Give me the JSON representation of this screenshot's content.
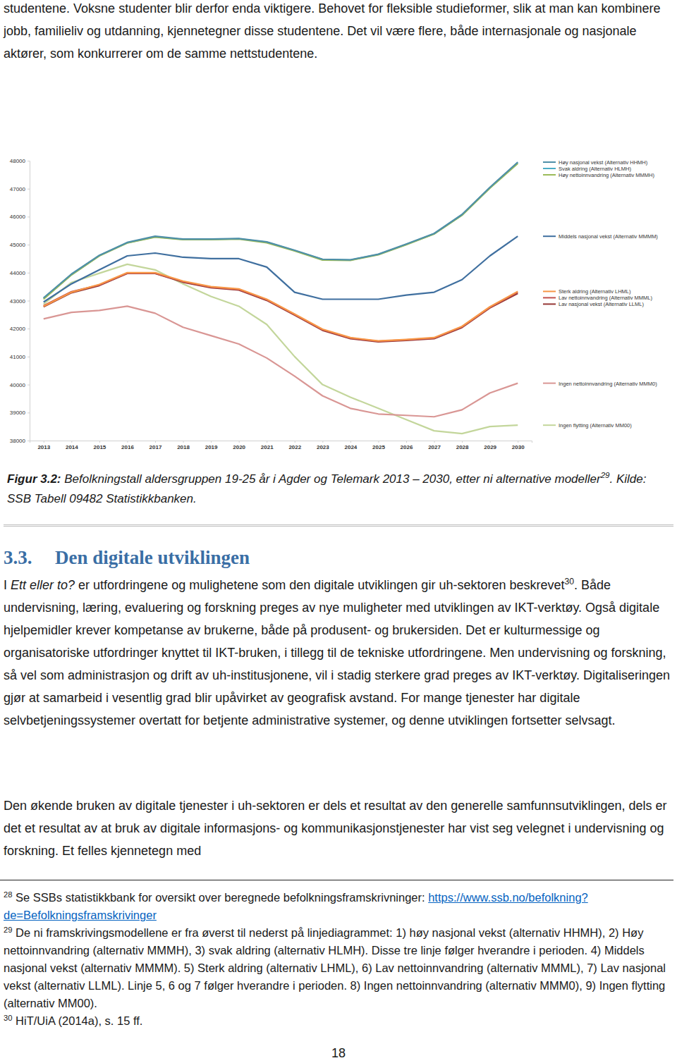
{
  "chart_data": {
    "type": "line",
    "categories": [
      2013,
      2014,
      2015,
      2016,
      2017,
      2018,
      2019,
      2020,
      2021,
      2022,
      2023,
      2024,
      2025,
      2026,
      2027,
      2028,
      2029,
      2030
    ],
    "ylim": [
      38000,
      48000
    ],
    "yticks": [
      38000,
      39000,
      40000,
      41000,
      42000,
      43000,
      44000,
      45000,
      46000,
      47000,
      48000
    ],
    "grid": false,
    "legend": "right",
    "series": [
      {
        "name": "Høy nasjonal vekst (Alternativ HHMH)",
        "color": "#4e8fa8",
        "values": [
          43100,
          43950,
          44620,
          45080,
          45300,
          45200,
          45200,
          45220,
          45100,
          44800,
          44480,
          44460,
          44660,
          45020,
          45400,
          46080,
          47050,
          47950
        ]
      },
      {
        "name": "Høy nettoinnvandring (Alternativ MMMH)",
        "color": "#9bbb59",
        "values": [
          43050,
          43920,
          44600,
          45060,
          45270,
          45180,
          45180,
          45200,
          45070,
          44780,
          44450,
          44440,
          44640,
          45000,
          45380,
          46050,
          47020,
          47900
        ]
      },
      {
        "name": "Svak aldring (Alternativ HLMH)",
        "color": "#4bacc6",
        "values": [
          43080,
          43930,
          44610,
          45070,
          45280,
          45190,
          45190,
          45210,
          45090,
          44790,
          44470,
          44450,
          44650,
          45010,
          45390,
          46060,
          47030,
          47920
        ]
      },
      {
        "name": "Middels nasjonal vekst (Alternativ MMMM)",
        "color": "#3f6f9f",
        "values": [
          42950,
          43600,
          44100,
          44600,
          44700,
          44550,
          44500,
          44500,
          44200,
          43300,
          43050,
          43050,
          43050,
          43200,
          43300,
          43750,
          44600,
          45300
        ]
      },
      {
        "name": "Sterk aldring (Alternativ LHML)",
        "color": "#f79646",
        "values": [
          42800,
          43300,
          43580,
          44000,
          44000,
          43700,
          43500,
          43420,
          43050,
          42520,
          41980,
          41680,
          41560,
          41610,
          41680,
          42080,
          42780,
          43330
        ]
      },
      {
        "name": "Lav nettoinnvandring (Alternativ MMML)",
        "color": "#c0504d",
        "values": [
          42820,
          43320,
          43560,
          43980,
          43980,
          43680,
          43480,
          43400,
          43030,
          42500,
          41960,
          41660,
          41550,
          41600,
          41660,
          42060,
          42760,
          43300
        ]
      },
      {
        "name": "Lav nasjonal vekst (Alternativ LLML)",
        "color": "#953735",
        "values": [
          42780,
          43280,
          43540,
          43970,
          43970,
          43660,
          43460,
          43380,
          43010,
          42480,
          41940,
          41640,
          41530,
          41580,
          41640,
          42040,
          42740,
          43260
        ]
      },
      {
        "name": "Ingen nettoinnvandring (Alternativ MMM0)",
        "color": "#d99694",
        "values": [
          42350,
          42580,
          42650,
          42800,
          42550,
          42050,
          41750,
          41450,
          40950,
          40300,
          39600,
          39150,
          38950,
          38900,
          38850,
          39100,
          39700,
          40050
        ]
      },
      {
        "name": "Ingen flytting (Alternativ MM00)",
        "color": "#c3d69b",
        "values": [
          42880,
          43650,
          43980,
          44300,
          44100,
          43600,
          43150,
          42800,
          42150,
          41000,
          40000,
          39550,
          39150,
          38750,
          38350,
          38250,
          38500,
          38550
        ]
      }
    ]
  },
  "document": {
    "intro": [
      {
        "text": "studentene. Voksne studenter blir derfor enda viktigere. Behovet for fleksible studieformer, slik at man kan kombinere jobb, familieliv og utdanning, kjennetegner disse studentene. Det vil være flere, både internasjonale og nasjonale aktører, som konkurrerer om de samme nettstudentene."
      }
    ],
    "caption": [
      {
        "text": "Figur 3.2:",
        "style": "bold-italic"
      },
      {
        "text": " Befolkningstall aldersgruppen 19-25 år i Agder og Telemark 2013 – 2030, etter ni alternative modeller",
        "style": "italic"
      },
      {
        "text": "29",
        "style": "sup"
      },
      {
        "text": ". Kilde: SSB Tabell 09482 Statistikkbanken.",
        "style": "italic"
      }
    ],
    "section": {
      "number": "3.3.",
      "title": "Den digitale utviklingen"
    },
    "paragraphs": [
      [
        {
          "text": "I "
        },
        {
          "text": "Ett eller to?",
          "style": "italic"
        },
        {
          "text": " er utfordringene og mulighetene som den digitale utviklingen gir uh-sektoren beskrevet"
        },
        {
          "text": "30",
          "style": "sup"
        },
        {
          "text": ". Både undervisning, læring, evaluering og forskning preges av nye muligheter med utviklingen av IKT-verktøy. Også digitale hjelpemidler krever kompetanse av brukerne, både på produsent- og brukersiden. Det er kulturmessige og organisatoriske utfordringer knyttet til IKT-bruken, i tillegg til de tekniske utfordringene. Men undervisning og forskning, så vel som administrasjon og drift av uh-institusjonene, vil i stadig sterkere grad preges av IKT-verktøy. Digitaliseringen gjør at samarbeid i vesentlig grad blir upåvirket av geografisk avstand. For mange tjenester har digitale selvbetjeningssystemer overtatt for betjente administrative systemer, og denne utviklingen fortsetter selvsagt."
        }
      ],
      [
        {
          "text": "Den økende bruken av digitale tjenester i uh-sektoren er dels et resultat av den generelle samfunnsutviklingen, dels er det et resultat av at bruk av digitale informasjons- og kommunikasjonstjenester har vist seg velegnet i undervisning og forskning. Et felles kjennetegn med"
        }
      ]
    ],
    "footnotes": [
      {
        "number": "28",
        "segments": [
          {
            "text": " Se SSBs statistikkbank for oversikt over beregnede befolkningsframskrivninger: "
          },
          {
            "text": "https://www.ssb.no/befolkning?de=Befolkningsframskrivinger",
            "style": "link"
          }
        ]
      },
      {
        "number": "29",
        "segments": [
          {
            "text": " De ni framskrivingsmodellene er fra øverst til nederst på linjediagrammet: 1) høy nasjonal vekst (alternativ HHMH), 2) Høy nettoinnvandring (alternativ MMMH), 3) svak aldring (alternativ HLMH). Disse tre linje følger hverandre i perioden. 4) Middels nasjonal vekst (alternativ MMMM). 5) Sterk aldring (alternativ LHML), 6) Lav nettoinnvandring (alternativ MMML), 7) Lav nasjonal vekst (alternativ LLML). Linje 5, 6 og 7 følger hverandre i perioden. 8) Ingen nettoinnvandring (alternativ MMM0), 9) Ingen flytting (alternativ MM00)."
          }
        ]
      },
      {
        "number": "30",
        "segments": [
          {
            "text": " HiT/UiA (2014a), s. 15 ff."
          }
        ]
      }
    ],
    "page_number": "18"
  }
}
